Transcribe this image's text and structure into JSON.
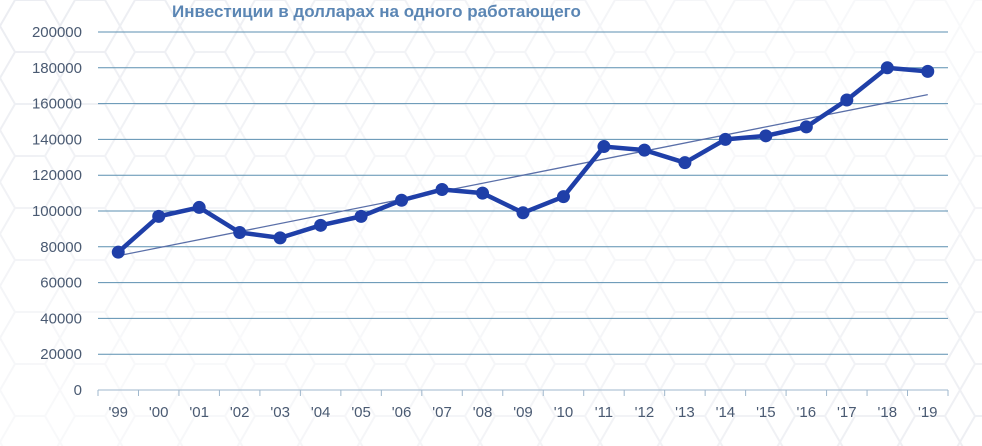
{
  "chart_data": {
    "type": "line",
    "title": "Инвестиции в долларах на одного работающего",
    "xlabel": "",
    "ylabel": "",
    "categories": [
      "'99",
      "'00",
      "'01",
      "'02",
      "'03",
      "'04",
      "'05",
      "'06",
      "'07",
      "'08",
      "'09",
      "'10",
      "'11",
      "'12",
      "'13",
      "'14",
      "'15",
      "'16",
      "'17",
      "'18",
      "'19"
    ],
    "y_ticks": [
      "0",
      "20000",
      "40000",
      "60000",
      "80000",
      "100000",
      "120000",
      "140000",
      "160000",
      "180000",
      "200000"
    ],
    "ylim": [
      0,
      200000
    ],
    "series": [
      {
        "values": [
          77000,
          97000,
          102000,
          88000,
          85000,
          92000,
          97000,
          106000,
          112000,
          110000,
          99000,
          108000,
          136000,
          134000,
          127000,
          140000,
          142000,
          147000,
          162000,
          180000,
          178000
        ],
        "color": "#1f3fa8"
      }
    ],
    "trendline": {
      "type": "linear",
      "start": 75000,
      "end": 165000,
      "color": "#5a6fa8"
    },
    "grid": true,
    "gridline_color": "#5b8fb0"
  }
}
